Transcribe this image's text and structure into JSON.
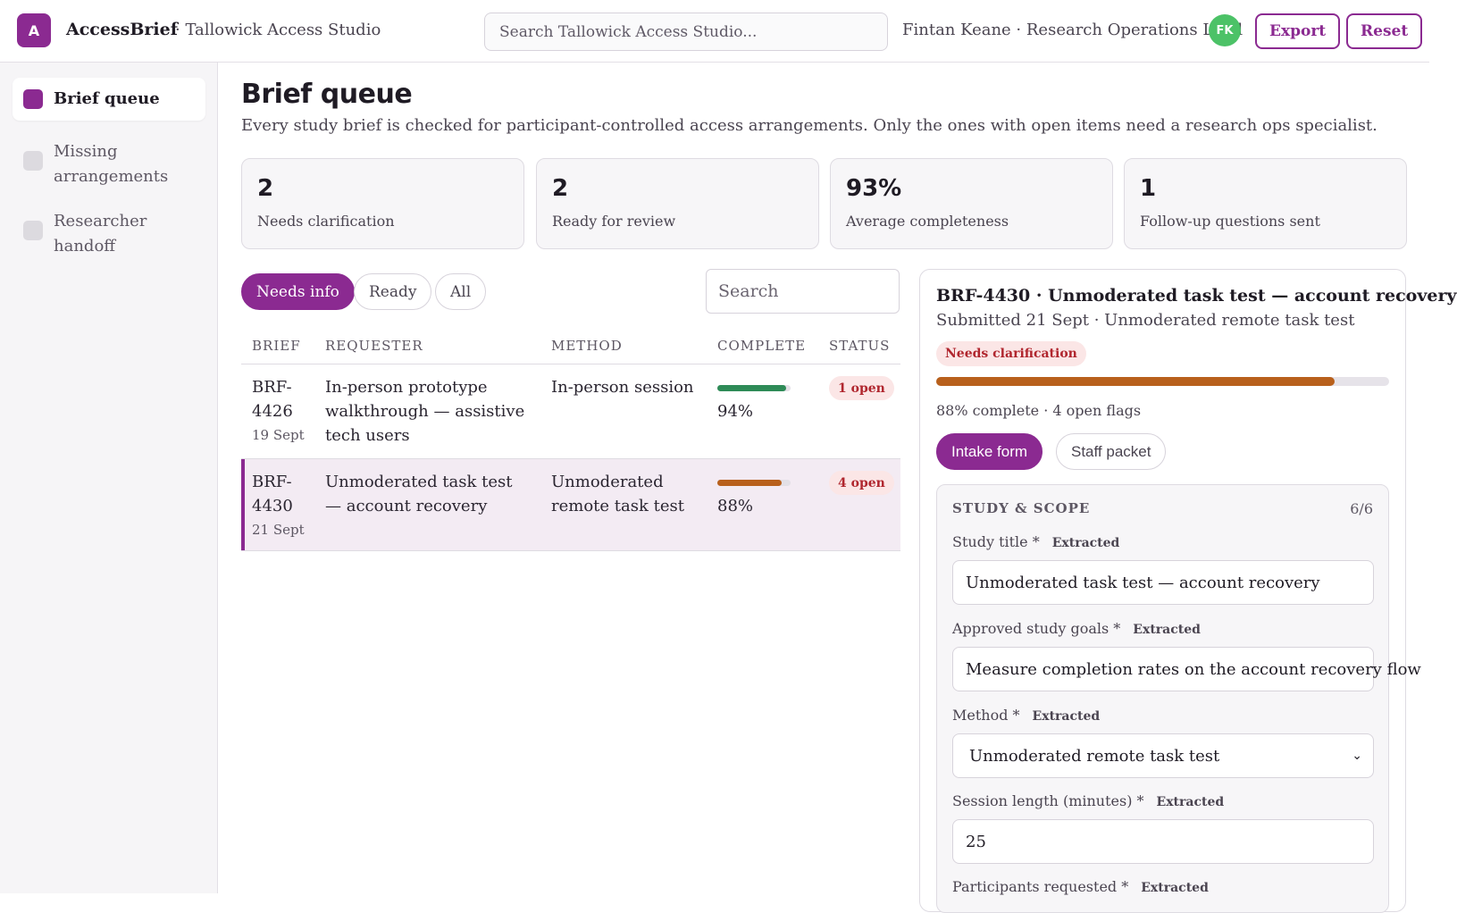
{
  "header": {
    "logo_letter": "A",
    "app_name": "AccessBrief",
    "org_name": "· Tallowick Access Studio",
    "search_placeholder": "Search Tallowick Access Studio...",
    "user": "Fintan Keane · Research Operations Lead",
    "avatar_initials": "FK",
    "export_label": "Export",
    "reset_label": "Reset"
  },
  "sidebar": {
    "items": [
      {
        "label": "Brief queue",
        "active": true
      },
      {
        "label": "Missing arrangements",
        "active": false
      },
      {
        "label": "Researcher handoff",
        "active": false
      }
    ]
  },
  "main": {
    "title": "Brief queue",
    "subtitle": "Every study brief is checked for participant-controlled access arrangements. Only the ones with open items need a research ops specialist.",
    "stats": [
      {
        "value": "2",
        "label": "Needs clarification"
      },
      {
        "value": "2",
        "label": "Ready for review"
      },
      {
        "value": "93%",
        "label": "Average completeness"
      },
      {
        "value": "1",
        "label": "Follow-up questions sent"
      }
    ],
    "filters": [
      "Needs info",
      "Ready",
      "All"
    ],
    "active_filter": "Needs info",
    "search_placeholder": "Search",
    "columns": [
      "BRIEF",
      "REQUESTER",
      "METHOD",
      "COMPLETE",
      "STATUS"
    ],
    "rows": [
      {
        "id_line1": "BRF-",
        "id_line2": "4426",
        "date": "19 Sept",
        "requester": "In-person prototype walkthrough — assistive tech users",
        "method": "In-person session",
        "complete": "94%",
        "complete_fraction": 0.94,
        "bar_color": "#2e8b57",
        "status": "1 open",
        "selected": false
      },
      {
        "id_line1": "BRF-",
        "id_line2": "4430",
        "date": "21 Sept",
        "requester": "Unmoderated task test — account recovery",
        "method": "Unmoderated remote task test",
        "complete": "88%",
        "complete_fraction": 0.88,
        "bar_color": "#b8601c",
        "status": "4 open",
        "selected": true
      }
    ]
  },
  "detail": {
    "title": "BRF-4430 · Unmoderated task test — account recovery",
    "subtitle": "Submitted 21 Sept · Unmoderated remote task test",
    "badge": "Needs clarification",
    "progress_fraction": 0.88,
    "progress_text": "88% complete · 4 open flags",
    "tabs": [
      "Intake form",
      "Staff packet"
    ],
    "active_tab": "Intake form",
    "section": {
      "title": "STUDY & SCOPE",
      "count": "6/6",
      "fields": [
        {
          "label": "Study title *",
          "tag": "Extracted",
          "value": "Unmoderated task test — account recovery"
        },
        {
          "label": "Approved study goals *",
          "tag": "Extracted",
          "value": "Measure completion rates on the account recovery flow"
        },
        {
          "label": "Method *",
          "tag": "Extracted",
          "value": "Unmoderated remote task test"
        },
        {
          "label": "Session length (minutes) *",
          "tag": "Extracted",
          "value": "25"
        },
        {
          "label": "Participants requested *",
          "tag": "Extracted",
          "value": ""
        }
      ]
    }
  },
  "colors": {
    "brand": "#8b2a91",
    "avatar": "#4cc267",
    "danger": "#b0262e",
    "warning_bar": "#b8601c",
    "success_bar": "#2e8b57"
  }
}
